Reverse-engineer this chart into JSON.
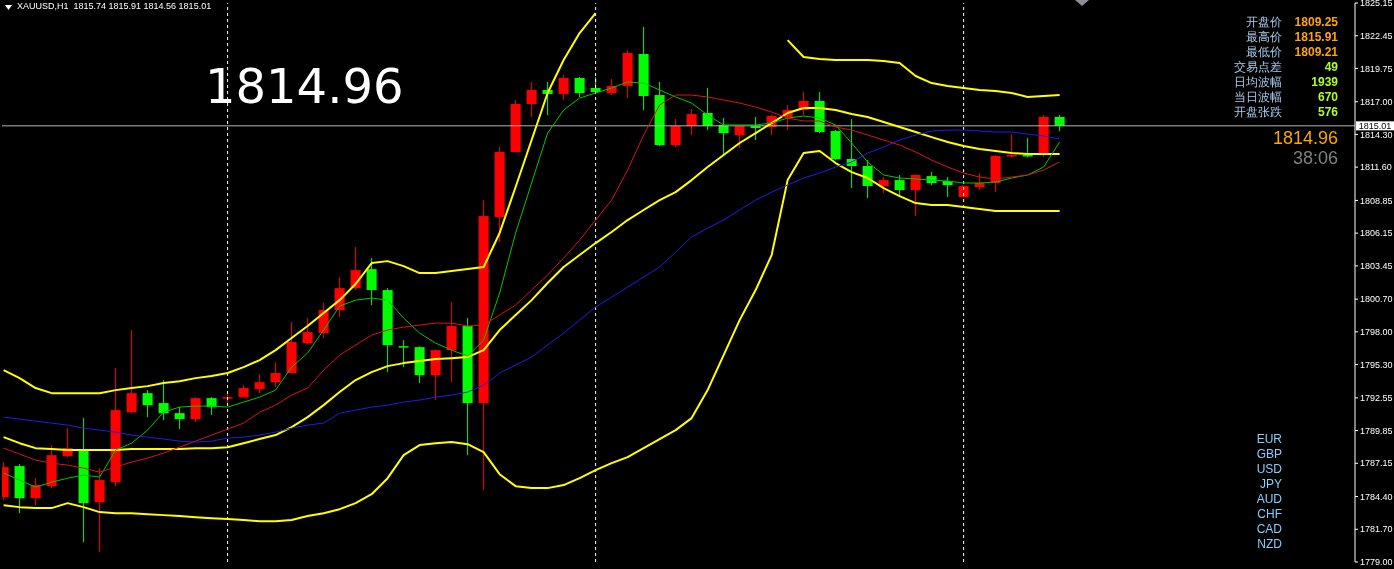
{
  "chart_data": {
    "type": "candlestick",
    "title": "XAUUSD,H1  1815.74 1815.91 1814.56 1815.01",
    "categories": [
      null,
      null,
      null,
      null,
      null,
      null,
      null,
      null,
      null,
      null,
      null,
      null,
      null,
      null,
      null,
      null,
      null,
      null,
      null,
      null,
      null,
      null,
      null,
      null,
      null,
      null,
      null,
      null,
      null,
      null,
      null,
      null,
      null,
      null,
      null,
      null,
      null,
      null,
      null,
      null,
      null,
      null,
      null,
      null,
      null,
      null,
      null,
      null,
      null,
      null,
      null,
      null,
      null,
      null,
      null,
      null,
      null,
      null,
      null,
      null,
      null,
      null,
      null,
      null,
      null,
      null,
      null
    ],
    "ohlc": [
      [
        1784.36,
        1787.25,
        1784.11,
        1786.83
      ],
      [
        1786.92,
        1787.08,
        1783.03,
        1784.27
      ],
      [
        1784.27,
        1785.92,
        1783.69,
        1785.35
      ],
      [
        1785.26,
        1788.65,
        1785.1,
        1787.82
      ],
      [
        1787.74,
        1790.05,
        1787.66,
        1788.4
      ],
      [
        1788.32,
        1790.88,
        1780.64,
        1783.86
      ],
      [
        1783.94,
        1786.75,
        1779.81,
        1785.76
      ],
      [
        1785.59,
        1795.01,
        1785.26,
        1791.54
      ],
      [
        1791.37,
        1798.15,
        1791.3,
        1792.94
      ],
      [
        1792.94,
        1793.19,
        1790.96,
        1791.95
      ],
      [
        1792.12,
        1794.02,
        1790.71,
        1791.29
      ],
      [
        1791.29,
        1791.79,
        1789.97,
        1790.8
      ],
      [
        1790.8,
        1792.61,
        1790.55,
        1792.53
      ],
      [
        1792.53,
        1792.61,
        1791.13,
        1791.79
      ],
      [
        1792.53,
        1792.94,
        1791.95,
        1792.61
      ],
      [
        1792.61,
        1793.6,
        1792.53,
        1793.36
      ],
      [
        1793.27,
        1794.51,
        1792.94,
        1793.85
      ],
      [
        1793.85,
        1795.5,
        1793.44,
        1794.6
      ],
      [
        1794.6,
        1798.81,
        1794.55,
        1797.16
      ],
      [
        1797.07,
        1799.14,
        1796.99,
        1797.98
      ],
      [
        1797.9,
        1800.38,
        1797.49,
        1799.8
      ],
      [
        1799.8,
        1802.52,
        1799.22,
        1801.61
      ],
      [
        1801.61,
        1805.0,
        1801.45,
        1803.1
      ],
      [
        1803.18,
        1804.09,
        1800.21,
        1801.45
      ],
      [
        1801.45,
        1801.61,
        1794.68,
        1796.91
      ],
      [
        1796.82,
        1797.32,
        1795.09,
        1796.74
      ],
      [
        1796.74,
        1796.8,
        1793.77,
        1794.43
      ],
      [
        1794.43,
        1796.55,
        1792.37,
        1796.49
      ],
      [
        1796.49,
        1800.46,
        1793.85,
        1798.48
      ],
      [
        1798.48,
        1799.14,
        1787.82,
        1792.12
      ],
      [
        1792.12,
        1808.88,
        1784.93,
        1807.56
      ],
      [
        1807.48,
        1813.26,
        1805.41,
        1812.85
      ],
      [
        1812.85,
        1817.14,
        1812.8,
        1816.81
      ],
      [
        1816.81,
        1818.63,
        1815.74,
        1817.97
      ],
      [
        1817.97,
        1818.63,
        1815.9,
        1817.64
      ],
      [
        1817.64,
        1819.2,
        1817.14,
        1818.96
      ],
      [
        1818.96,
        1819.04,
        1817.39,
        1817.72
      ],
      [
        1818.13,
        1819.04,
        1817.75,
        1817.8
      ],
      [
        1817.72,
        1818.87,
        1817.55,
        1818.3
      ],
      [
        1818.3,
        1821.27,
        1817.3,
        1821.02
      ],
      [
        1820.94,
        1823.17,
        1816.31,
        1817.47
      ],
      [
        1817.55,
        1818.63,
        1813.34,
        1813.42
      ],
      [
        1813.42,
        1815.57,
        1813.26,
        1814.99
      ],
      [
        1814.99,
        1816.4,
        1814.25,
        1815.98
      ],
      [
        1816.07,
        1818.13,
        1814.66,
        1814.99
      ],
      [
        1815.08,
        1815.65,
        1812.6,
        1814.41
      ],
      [
        1814.25,
        1815.05,
        1813.18,
        1814.99
      ],
      [
        1814.99,
        1815.74,
        1813.84,
        1814.83
      ],
      [
        1814.91,
        1815.9,
        1814.25,
        1815.82
      ],
      [
        1815.74,
        1816.73,
        1814.66,
        1816.31
      ],
      [
        1816.31,
        1817.8,
        1815.9,
        1817.06
      ],
      [
        1817.06,
        1817.8,
        1814.4,
        1814.5
      ],
      [
        1814.58,
        1814.66,
        1812.18,
        1812.27
      ],
      [
        1812.27,
        1815.57,
        1809.87,
        1811.69
      ],
      [
        1811.69,
        1812.18,
        1809.05,
        1810.04
      ],
      [
        1810.04,
        1810.78,
        1809.46,
        1810.53
      ],
      [
        1810.53,
        1810.95,
        1809.13,
        1809.71
      ],
      [
        1809.71,
        1811.0,
        1807.56,
        1810.95
      ],
      [
        1810.86,
        1811.2,
        1810.1,
        1810.29
      ],
      [
        1810.45,
        1810.78,
        1809.13,
        1810.12
      ],
      [
        1809.13,
        1810.1,
        1809.05,
        1810.04
      ],
      [
        1809.96,
        1811.11,
        1809.71,
        1810.29
      ],
      [
        1810.29,
        1812.6,
        1809.54,
        1812.52
      ],
      [
        1812.56,
        1814.33,
        1812.4,
        1812.6
      ],
      [
        1812.6,
        1814.0,
        1812.4,
        1812.56
      ],
      [
        1812.6,
        1815.9,
        1812.45,
        1815.74
      ],
      [
        1815.74,
        1815.91,
        1814.56,
        1815.01
      ]
    ],
    "colors": [
      "#ff0000",
      "#00ff00",
      "#ff0000",
      "#ff0000",
      "#ff0000",
      "#00ff00",
      "#ff0000",
      "#ff0000",
      "#ff0000",
      "#00ff00",
      "#00ff00",
      "#00ff00",
      "#ff0000",
      "#00ff00",
      "#ff0000",
      "#ff0000",
      "#ff0000",
      "#ff0000",
      "#ff0000",
      "#ff0000",
      "#ff0000",
      "#ff0000",
      "#ff0000",
      "#00ff00",
      "#00ff00",
      "#00ff00",
      "#00ff00",
      "#ff0000",
      "#ff0000",
      "#00ff00",
      "#ff0000",
      "#ff0000",
      "#ff0000",
      "#ff0000",
      "#00ff00",
      "#ff0000",
      "#00ff00",
      "#00ff00",
      "#ff0000",
      "#ff0000",
      "#00ff00",
      "#00ff00",
      "#ff0000",
      "#ff0000",
      "#00ff00",
      "#00ff00",
      "#ff0000",
      "#00ff00",
      "#ff0000",
      "#ff0000",
      "#ff0000",
      "#00ff00",
      "#00ff00",
      "#00ff00",
      "#00ff00",
      "#ff0000",
      "#00ff00",
      "#ff0000",
      "#00ff00",
      "#00ff00",
      "#ff0000",
      "#ff0000",
      "#ff0000",
      "#ff0000",
      "#00ff00",
      "#ff0000",
      "#00ff00"
    ],
    "series": [
      {
        "type": "line",
        "color": "#ffff00",
        "values": [
          1794.84,
          1794.18,
          1793.36,
          1792.94,
          1792.94,
          1792.94,
          1792.94,
          1793.19,
          1793.36,
          1793.52,
          1793.77,
          1793.93,
          1794.18,
          1794.35,
          1794.6,
          1795.09,
          1795.67,
          1796.49,
          1797.49,
          1798.48,
          1799.55,
          1800.62,
          1801.95,
          1803.68,
          1803.84,
          1803.43,
          1802.85,
          1802.85,
          1803.02,
          1803.18,
          1803.35,
          1806.16,
          1809.96,
          1813.84,
          1817.72,
          1820.44,
          1822.67,
          1824.32,
          null,
          null,
          null,
          null,
          null,
          null,
          null,
          null,
          null,
          null,
          null,
          1822.09,
          1820.69,
          1820.53,
          1820.44,
          1820.44,
          1820.44,
          1820.36,
          1820.2,
          1819.12,
          1818.54,
          1818.3,
          1818.13,
          1817.97,
          1817.88,
          1817.72,
          1817.39,
          1817.47,
          1817.55
        ]
      },
      {
        "type": "line",
        "color": "#ffff00",
        "values": [
          1789.31,
          1788.81,
          1788.4,
          1788.32,
          1788.24,
          1788.24,
          1788.24,
          1788.24,
          1788.32,
          1788.32,
          1788.32,
          1788.32,
          1788.4,
          1788.4,
          1788.48,
          1788.81,
          1789.15,
          1789.48,
          1790.14,
          1790.96,
          1791.95,
          1793.03,
          1794.02,
          1794.68,
          1795.17,
          1795.42,
          1795.59,
          1795.75,
          1795.83,
          1795.92,
          1796.49,
          1798.15,
          1799.39,
          1800.62,
          1802.03,
          1803.35,
          1804.34,
          1805.33,
          1806.24,
          1807.23,
          1808.06,
          1808.88,
          1809.54,
          1810.53,
          1811.61,
          1812.6,
          1813.59,
          1814.41,
          1815.24,
          1816.07,
          1816.48,
          1816.48,
          1816.31,
          1815.98,
          1815.74,
          1815.32,
          1814.91,
          1814.5,
          1814.08,
          1813.67,
          1813.34,
          1813.09,
          1812.93,
          1812.76,
          1812.68,
          1812.68,
          1812.68
        ]
      },
      {
        "type": "line",
        "color": "#ffff00",
        "values": [
          1783.69,
          1783.53,
          1783.45,
          1783.45,
          1783.86,
          1783.53,
          1783.12,
          1783.03,
          1783.03,
          1782.95,
          1782.87,
          1782.79,
          1782.7,
          1782.62,
          1782.54,
          1782.46,
          1782.37,
          1782.37,
          1782.46,
          1782.79,
          1783.03,
          1783.36,
          1783.86,
          1784.6,
          1785.92,
          1787.82,
          1788.65,
          1788.81,
          1788.9,
          1788.73,
          1788.07,
          1786.25,
          1785.26,
          1785.1,
          1785.1,
          1785.35,
          1785.92,
          1786.59,
          1787.16,
          1787.66,
          1788.4,
          1789.15,
          1789.89,
          1790.88,
          1793.19,
          1796.08,
          1798.97,
          1801.45,
          1804.34,
          1810.53,
          1812.76,
          1812.93,
          1811.94,
          1811.19,
          1810.7,
          1809.87,
          1809.21,
          1808.63,
          1808.47,
          1808.47,
          1808.3,
          1808.14,
          1807.97,
          1807.97,
          1807.97,
          1807.97,
          1807.97
        ]
      },
      {
        "type": "line",
        "color": "#00c800",
        "values": [
          1786.34,
          1785.76,
          1785.18,
          1785.59,
          1785.92,
          1786.17,
          1786.01,
          1788.24,
          1788.81,
          1789.89,
          1791.37,
          1791.79,
          1791.87,
          1791.87,
          1791.79,
          1792.2,
          1792.61,
          1793.19,
          1795.09,
          1796.25,
          1798.15,
          1800.13,
          1800.62,
          1800.79,
          1800.62,
          1799.14,
          1797.9,
          1797.07,
          1796.49,
          1796.0,
          1797.32,
          1801.2,
          1806.16,
          1810.29,
          1814.41,
          1816.31,
          1817.3,
          1817.72,
          1818.13,
          1818.63,
          1818.54,
          1817.97,
          1817.39,
          1816.89,
          1815.9,
          1815.08,
          1815.08,
          1815.08,
          1815.24,
          1815.65,
          1815.82,
          1815.65,
          1815.08,
          1813.59,
          1812.02,
          1810.95,
          1810.7,
          1810.62,
          1810.53,
          1810.45,
          1810.29,
          1810.29,
          1810.37,
          1810.7,
          1810.95,
          1811.61,
          1813.67
        ]
      },
      {
        "type": "line",
        "color": "#dc1414",
        "values": [
          1788.4,
          1787.91,
          1787.41,
          1787.16,
          1787.0,
          1786.75,
          1786.42,
          1786.83,
          1787.25,
          1787.58,
          1787.99,
          1788.48,
          1788.98,
          1789.48,
          1789.97,
          1790.47,
          1791.37,
          1791.95,
          1792.78,
          1793.36,
          1794.84,
          1796.08,
          1796.91,
          1797.73,
          1798.15,
          1798.39,
          1798.56,
          1798.72,
          1798.72,
          1798.48,
          1798.56,
          1799.39,
          1800.21,
          1801.45,
          1802.69,
          1804.09,
          1805.58,
          1807.23,
          1808.88,
          1811.36,
          1814.25,
          1816.73,
          1817.55,
          1817.55,
          1817.39,
          1817.14,
          1816.89,
          1816.56,
          1816.15,
          1815.65,
          1815.41,
          1815.41,
          1814.91,
          1814.66,
          1814.25,
          1813.84,
          1813.42,
          1812.85,
          1812.18,
          1811.61,
          1811.11,
          1810.78,
          1810.62,
          1810.78,
          1810.95,
          1811.36,
          1812.02
        ]
      },
      {
        "type": "line",
        "color": "#1e1ee6",
        "values": [
          1790.96,
          1790.8,
          1790.63,
          1790.47,
          1790.3,
          1790.05,
          1789.89,
          1789.72,
          1789.48,
          1789.31,
          1789.15,
          1788.98,
          1788.9,
          1788.98,
          1789.23,
          1789.31,
          1789.48,
          1789.72,
          1790.05,
          1790.3,
          1790.47,
          1791.29,
          1791.54,
          1791.79,
          1791.95,
          1792.2,
          1792.37,
          1792.61,
          1792.78,
          1793.03,
          1793.6,
          1794.6,
          1795.26,
          1795.92,
          1796.91,
          1797.9,
          1798.97,
          1800.05,
          1800.87,
          1801.7,
          1802.52,
          1803.35,
          1804.59,
          1805.83,
          1806.57,
          1807.23,
          1808.06,
          1808.88,
          1809.54,
          1810.12,
          1810.7,
          1811.11,
          1811.61,
          1812.02,
          1812.76,
          1813.26,
          1813.84,
          1814.25,
          1814.58,
          1814.66,
          1814.66,
          1814.58,
          1814.5,
          1814.5,
          1814.33,
          1814.17,
          1813.92
        ]
      }
    ],
    "ylim": [
      1779.0,
      1825.15
    ],
    "yticks": [
      1825.15,
      1822.45,
      1819.75,
      {
        "value": 1817,
        "label": "1817.00"
      },
      {
        "value": 1814.3,
        "label": "1814.30"
      },
      {
        "value": 1811.6,
        "label": "1811.60"
      },
      1808.85,
      1806.15,
      1803.45,
      {
        "value": 1800.7,
        "label": "1800.70"
      },
      {
        "value": 1798,
        "label": "1798.00"
      },
      {
        "value": 1795.3,
        "label": "1795.30"
      },
      1792.55,
      1789.85,
      1787.15,
      {
        "value": 1784.4,
        "label": "1784.40"
      },
      {
        "value": 1781.7,
        "label": "1781.70"
      },
      {
        "value": 1779,
        "label": "1779.00"
      }
    ],
    "tick_labels": "y",
    "marker": "none",
    "grid": "x",
    "ref_lines": [
      {
        "axis": "y",
        "value": 1815.01,
        "label": "1815.01",
        "color": "#b4b4b4"
      }
    ],
    "annotations": [
      "1814.96",
      "开盘价",
      "最高价",
      "最低价",
      "交易点差",
      "日均波幅",
      "当日波幅",
      "开盘张跌",
      "1809.25",
      "1815.91",
      "1809.21",
      "49",
      "1939",
      "670",
      "576",
      "1814.96",
      "38:06",
      "EUR",
      "GBP",
      "USD",
      "JPY",
      "AUD",
      "CHF",
      "CAD",
      "NZD"
    ]
  }
}
